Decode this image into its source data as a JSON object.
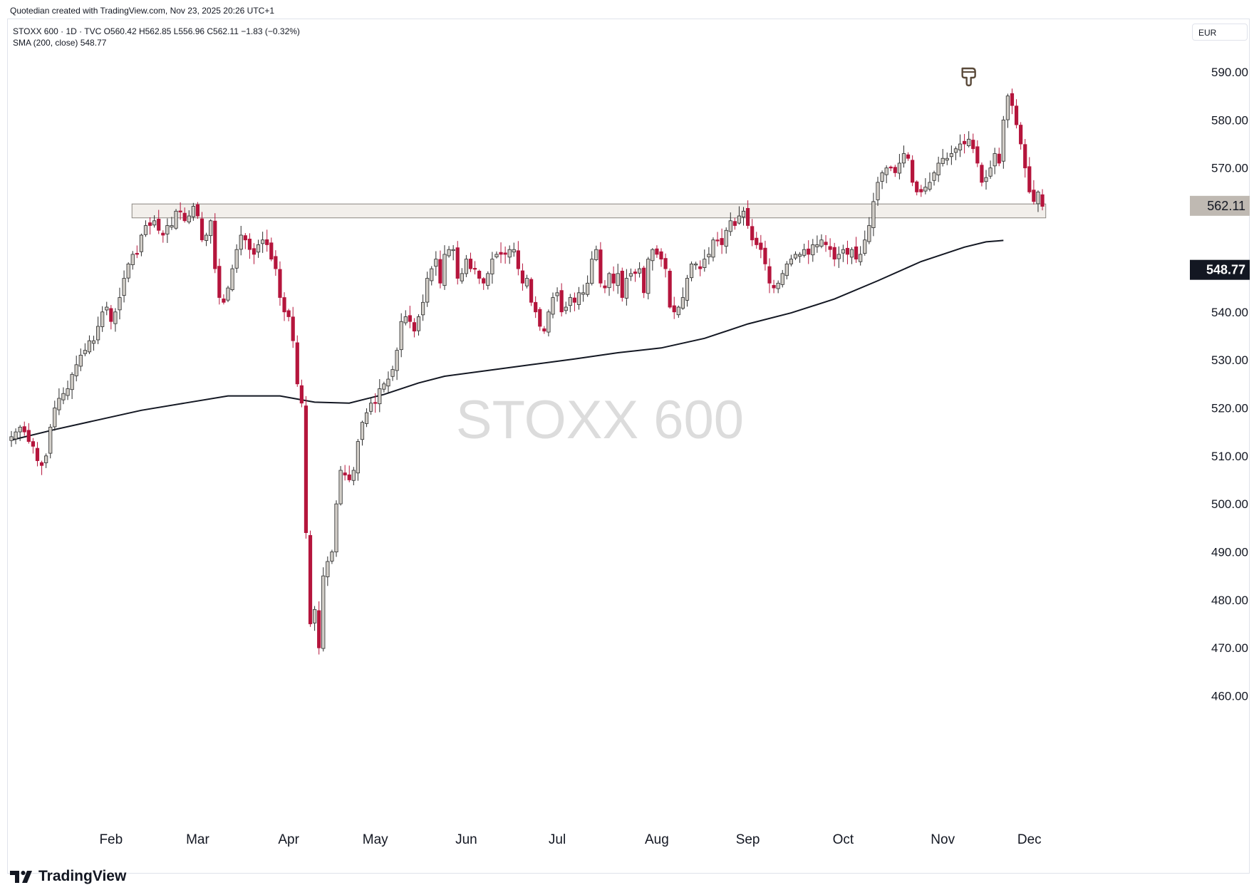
{
  "attribution": "Quotedian created with TradingView.com, Nov 23, 2025 20:26 UTC+1",
  "legend": {
    "line1": "STOXX 600 · 1D · TVC  O560.42  H562.85  L556.96  C562.11  −1.83 (−0.32%)",
    "line2": "SMA (200, close)  548.77"
  },
  "currency": "EUR",
  "watermark": "STOXX 600",
  "brand": "TradingView",
  "icons": {
    "brand": "tradingview-logo-icon",
    "marker": "pointing-hand-icon"
  },
  "colors": {
    "up_fill": "#d1cdc7",
    "up_edge": "#2b2b2b",
    "down": "#b5153c",
    "sma": "#131722",
    "zone_fill": "#f2efeb",
    "zone_edge": "#8a8681",
    "last_price_bg": "#bfb9b2",
    "sma_label_bg": "#131722"
  },
  "chart_data": {
    "type": "candlestick",
    "title": "STOXX 600",
    "y_axis": {
      "min": 460,
      "max": 590,
      "ticks": [
        "590.00",
        "580.00",
        "570.00",
        "540.00",
        "530.00",
        "520.00",
        "510.00",
        "500.00",
        "490.00",
        "480.00",
        "470.00",
        "460.00"
      ]
    },
    "x_axis": {
      "labels": [
        {
          "label": "Feb",
          "day": 23
        },
        {
          "label": "Mar",
          "day": 43
        },
        {
          "label": "Apr",
          "day": 64
        },
        {
          "label": "May",
          "day": 84
        },
        {
          "label": "Jun",
          "day": 105
        },
        {
          "label": "Jul",
          "day": 126
        },
        {
          "label": "Aug",
          "day": 149
        },
        {
          "label": "Sep",
          "day": 170
        },
        {
          "label": "Oct",
          "day": 192
        },
        {
          "label": "Nov",
          "day": 215
        },
        {
          "label": "Dec",
          "day": 235
        }
      ]
    },
    "last_price": {
      "label": "562.11",
      "value": 562.11
    },
    "sma_value": {
      "label": "548.77",
      "value": 548.77
    },
    "support_zone": {
      "top": 562.5,
      "bottom": 559.6,
      "day_start": 28,
      "day_end": 234
    },
    "marker_day": 221,
    "sma200": [
      [
        0,
        513.3
      ],
      [
        10,
        515.5
      ],
      [
        20,
        517.5
      ],
      [
        30,
        519.5
      ],
      [
        40,
        521.0
      ],
      [
        50,
        522.5
      ],
      [
        62,
        522.5
      ],
      [
        70,
        521.2
      ],
      [
        78,
        521.0
      ],
      [
        86,
        522.8
      ],
      [
        94,
        525.2
      ],
      [
        100,
        526.6
      ],
      [
        110,
        527.8
      ],
      [
        120,
        529.0
      ],
      [
        130,
        530.2
      ],
      [
        140,
        531.5
      ],
      [
        150,
        532.5
      ],
      [
        160,
        534.5
      ],
      [
        170,
        537.5
      ],
      [
        180,
        539.8
      ],
      [
        190,
        542.7
      ],
      [
        200,
        546.5
      ],
      [
        210,
        550.5
      ],
      [
        220,
        553.5
      ],
      [
        225,
        554.6
      ],
      [
        229,
        554.9
      ]
    ],
    "close": [
      514,
      515,
      516,
      515,
      513,
      512,
      509,
      508,
      510,
      516,
      520,
      522,
      523,
      524,
      527,
      529,
      531,
      532,
      534,
      534,
      537,
      540,
      541,
      538,
      540,
      543,
      547,
      550,
      552,
      552,
      556,
      558,
      558,
      559,
      557,
      556,
      558,
      558,
      561,
      561,
      559,
      560,
      562,
      560,
      555,
      556,
      559,
      549,
      543,
      542,
      545,
      549,
      553,
      556,
      555,
      553,
      552,
      554,
      555,
      554,
      551,
      549,
      543,
      540,
      539,
      534,
      525,
      521,
      494,
      475,
      478,
      470,
      485,
      488,
      490,
      500,
      507,
      506,
      505,
      507,
      513,
      517,
      519,
      521,
      521,
      524,
      525,
      526,
      528,
      532,
      538,
      539,
      538,
      536,
      539,
      542,
      547,
      549,
      551,
      546,
      552,
      553,
      553,
      547,
      548,
      551,
      549,
      549,
      547,
      546,
      548,
      551,
      552,
      552,
      552,
      553,
      553,
      549,
      546,
      547,
      542,
      540,
      537,
      536,
      540,
      543,
      544,
      540,
      541,
      543,
      542,
      544,
      544,
      546,
      551,
      553,
      546,
      545,
      548,
      546,
      548,
      543,
      547,
      548,
      548,
      549,
      544,
      551,
      553,
      552,
      551,
      549,
      541,
      540,
      541,
      543,
      547,
      550,
      550,
      549,
      551,
      552,
      555,
      555,
      554,
      557,
      559,
      558,
      560,
      561,
      558,
      555,
      554,
      553,
      550,
      546,
      545,
      546,
      548,
      550,
      551,
      552,
      552,
      553,
      552,
      554,
      554,
      555,
      554,
      553,
      551,
      552,
      553,
      552,
      553,
      551,
      552,
      555,
      558,
      563,
      567,
      569,
      570,
      570,
      569,
      571,
      573,
      572,
      567,
      565,
      565,
      566,
      567,
      569,
      571,
      572,
      572,
      573,
      574,
      575,
      575,
      576,
      574,
      571,
      567,
      568,
      570,
      573,
      571,
      580,
      585,
      583,
      579,
      575,
      570,
      565,
      563,
      565,
      562
    ]
  }
}
